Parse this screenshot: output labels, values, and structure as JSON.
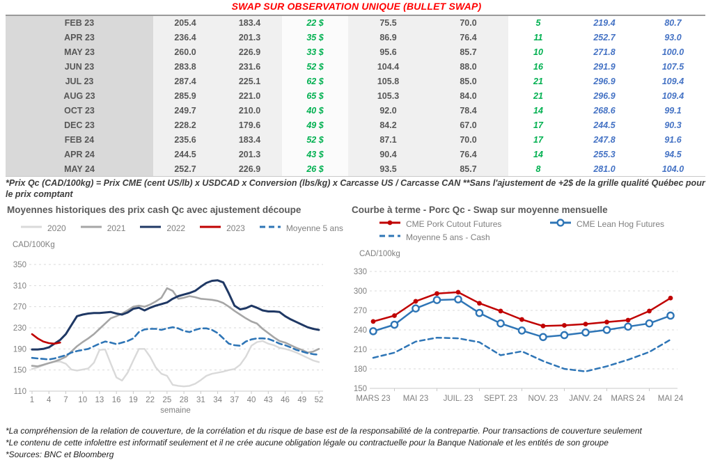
{
  "header": {
    "title": "SWAP SUR OBSERVATION UNIQUE (BULLET SWAP)"
  },
  "colors": {
    "title_red": "#ff0000",
    "green": "#00b050",
    "table_blue": "#4472c4",
    "red": "#c00000",
    "navy": "#1f3864",
    "blue": "#2e75b6",
    "gray2021": "#a6a6a6",
    "gray2020": "#d9d9d9"
  },
  "table": {
    "rows": [
      [
        "FEB 23",
        "205.4",
        "183.4",
        "22 $",
        "75.5",
        "70.0",
        "5",
        "219.4",
        "80.7"
      ],
      [
        "APR 23",
        "236.4",
        "201.3",
        "35 $",
        "86.9",
        "76.4",
        "11",
        "252.7",
        "93.0"
      ],
      [
        "MAY 23",
        "260.0",
        "226.9",
        "33 $",
        "95.6",
        "85.7",
        "10",
        "271.8",
        "100.0"
      ],
      [
        "JUN 23",
        "283.8",
        "231.6",
        "52 $",
        "104.4",
        "88.0",
        "16",
        "291.9",
        "107.5"
      ],
      [
        "JUL 23",
        "287.4",
        "225.1",
        "62 $",
        "105.8",
        "85.0",
        "21",
        "296.9",
        "109.4"
      ],
      [
        "AUG 23",
        "285.9",
        "221.0",
        "65 $",
        "105.3",
        "84.0",
        "21",
        "296.9",
        "109.4"
      ],
      [
        "OCT 23",
        "249.7",
        "210.0",
        "40 $",
        "92.0",
        "78.4",
        "14",
        "268.6",
        "99.1"
      ],
      [
        "DEC 23",
        "228.2",
        "179.6",
        "49 $",
        "84.2",
        "67.0",
        "17",
        "244.5",
        "90.3"
      ],
      [
        "FEB 24",
        "235.6",
        "183.4",
        "52 $",
        "87.1",
        "70.0",
        "17",
        "247.8",
        "91.6"
      ],
      [
        "APR 24",
        "244.5",
        "201.3",
        "43 $",
        "90.4",
        "76.4",
        "14",
        "255.3",
        "94.5"
      ],
      [
        "MAY 24",
        "252.7",
        "226.9",
        "26 $",
        "93.5",
        "85.7",
        "8",
        "281.0",
        "104.0"
      ]
    ],
    "note": "*Prix Qc (CAD/100kg) = Prix CME (cent US/lb) x USDCAD x Conversion (lbs/kg) x Carcasse US / Carcasse CAN **Sans l'ajustement de +2$ de la grille qualité Québec pour le prix comptant"
  },
  "chart_data": [
    {
      "type": "line",
      "title": "Moyennes historiques des prix cash Qc avec ajustement découpe",
      "ylabel": "CAD/100Kg",
      "xlabel": "semaine",
      "ylim": [
        110,
        350
      ],
      "yticks": [
        110,
        150,
        190,
        230,
        270,
        310,
        350
      ],
      "x_ticks": [
        1,
        4,
        7,
        10,
        13,
        16,
        19,
        22,
        25,
        28,
        31,
        34,
        37,
        40,
        43,
        46,
        49,
        52
      ],
      "weeks": 52,
      "grid": "dashed horizontal",
      "legend_position": "top",
      "series": [
        {
          "name": "2020",
          "color": "#d9d9d9",
          "style": "solid",
          "values": [
            152,
            155,
            159,
            163,
            166,
            166,
            162,
            151,
            149,
            151,
            153,
            164,
            188,
            189,
            162,
            136,
            130,
            145,
            168,
            190,
            190,
            175,
            155,
            143,
            139,
            122,
            120,
            119,
            120,
            124,
            131,
            139,
            143,
            145,
            147,
            150,
            152,
            160,
            175,
            196,
            203,
            205,
            200,
            197,
            192,
            190,
            187,
            183,
            178,
            173,
            168,
            165
          ]
        },
        {
          "name": "2021",
          "color": "#a6a6a6",
          "style": "solid",
          "values": [
            158,
            157,
            160,
            163,
            166,
            170,
            175,
            185,
            195,
            203,
            210,
            218,
            228,
            238,
            248,
            252,
            257,
            263,
            270,
            272,
            270,
            274,
            280,
            287,
            305,
            300,
            285,
            287,
            290,
            288,
            285,
            284,
            283,
            281,
            277,
            270,
            262,
            255,
            248,
            242,
            238,
            228,
            220,
            212,
            205,
            202,
            197,
            192,
            188,
            183,
            185,
            190
          ]
        },
        {
          "name": "2022",
          "color": "#1f3864",
          "style": "solid",
          "values": [
            189,
            189,
            190,
            193,
            200,
            207,
            218,
            235,
            252,
            255,
            257,
            258,
            258,
            259,
            260,
            257,
            255,
            259,
            266,
            268,
            263,
            268,
            272,
            275,
            278,
            285,
            290,
            293,
            296,
            300,
            308,
            315,
            319,
            320,
            316,
            295,
            272,
            265,
            267,
            272,
            268,
            263,
            261,
            261,
            260,
            252,
            246,
            241,
            236,
            231,
            228,
            226
          ]
        },
        {
          "name": "2023",
          "color": "#c00000",
          "style": "solid",
          "values": [
            218,
            210,
            204,
            201,
            200,
            202
          ]
        },
        {
          "name": "Moyenne 5 ans",
          "color": "#2e75b6",
          "style": "dashed",
          "values": [
            173,
            172,
            171,
            170,
            172,
            175,
            178,
            183,
            186,
            188,
            190,
            195,
            200,
            204,
            202,
            199,
            202,
            205,
            210,
            222,
            227,
            228,
            228,
            226,
            229,
            231,
            229,
            224,
            222,
            226,
            229,
            229,
            226,
            220,
            210,
            200,
            197,
            196,
            204,
            208,
            210,
            210,
            209,
            205,
            200,
            197,
            193,
            188,
            185,
            182,
            180,
            179
          ]
        }
      ]
    },
    {
      "type": "line",
      "title": "Courbe à terme - Porc Qc - Swap sur moyenne mensuelle",
      "ylabel": "CAD/100kg",
      "ylim": [
        150,
        330
      ],
      "yticks": [
        150,
        180,
        210,
        240,
        270,
        300,
        330
      ],
      "n_points": 15,
      "x_tick_labels": [
        "MARS 23",
        "MAI 23",
        "JUIL. 23",
        "SEPT. 23",
        "NOV. 23",
        "JANV. 24",
        "MARS 24",
        "MAI 24"
      ],
      "grid": "dashed horizontal",
      "legend_position": "top",
      "series": [
        {
          "name": "CME Pork Cutout Futures",
          "color": "#c00000",
          "style": "solid",
          "marker": "filled",
          "values": [
            253,
            262,
            284,
            296,
            298,
            281,
            269,
            256,
            246,
            247,
            249,
            252,
            255,
            269,
            289
          ]
        },
        {
          "name": "CME Lean Hog Futures",
          "color": "#2e75b6",
          "style": "solid",
          "marker": "open",
          "values": [
            238,
            248,
            273,
            286,
            287,
            266,
            250,
            239,
            229,
            232,
            236,
            240,
            245,
            250,
            262
          ]
        },
        {
          "name": "Moyenne 5 ans - Cash",
          "color": "#2e75b6",
          "style": "dashed",
          "values": [
            197,
            205,
            222,
            228,
            227,
            221,
            201,
            207,
            192,
            180,
            176,
            184,
            194,
            206,
            225
          ]
        }
      ]
    }
  ],
  "footnotes": [
    "*La compréhension de la relation de couverture, de la corrélation et du risque de base est de la responsabilité de la contrepartie. Pour transactions de couverture seulement",
    "*Le contenu de cette infolettre est informatif seulement et il ne crée aucune obligation légale ou contractuelle pour la Banque Nationale et les entités de son groupe",
    "*Sources: BNC et Bloomberg"
  ]
}
